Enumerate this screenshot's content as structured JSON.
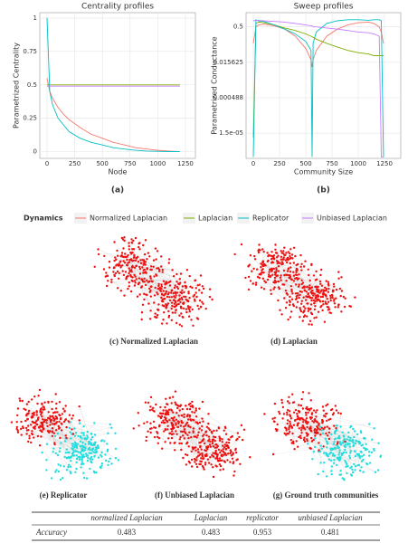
{
  "chart_data": [
    {
      "type": "line",
      "title": "Centrality profiles",
      "x_label": "Node",
      "y_label": "Parametrized Centrality",
      "panel_label": "(a)",
      "legend_title": "Dynamics",
      "grid": true,
      "x": [
        0,
        25,
        50,
        100,
        150,
        200,
        300,
        400,
        500,
        600,
        700,
        800,
        900,
        1000,
        1100,
        1200
      ],
      "xlim": [
        -65,
        1340
      ],
      "xticks": [
        0,
        250,
        500,
        750,
        1000,
        1250
      ],
      "ylim": [
        -0.05,
        1.04
      ],
      "yticks": [
        0,
        0.25,
        0.5,
        0.75,
        1
      ],
      "series": [
        {
          "name": "Normalized Laplacian",
          "color": "#f8766d",
          "values": [
            0.55,
            0.45,
            0.4,
            0.33,
            0.28,
            0.24,
            0.18,
            0.13,
            0.1,
            0.07,
            0.05,
            0.03,
            0.02,
            0.01,
            0.005,
            0
          ]
        },
        {
          "name": "Laplacian",
          "color": "#7cae00",
          "values": [
            0.5,
            0.5,
            0.5,
            0.5,
            0.5,
            0.5,
            0.5,
            0.5,
            0.5,
            0.5,
            0.5,
            0.5,
            0.5,
            0.5,
            0.5,
            0.5
          ]
        },
        {
          "name": "Replicator",
          "color": "#00bfc4",
          "values": [
            1,
            0.45,
            0.35,
            0.25,
            0.2,
            0.15,
            0.1,
            0.07,
            0.05,
            0.03,
            0.02,
            0.01,
            0.005,
            0.003,
            0.001,
            0
          ]
        },
        {
          "name": "Unbiased Laplacian",
          "color": "#c77cff",
          "values": [
            0.49,
            0.49,
            0.49,
            0.49,
            0.49,
            0.49,
            0.49,
            0.49,
            0.49,
            0.49,
            0.49,
            0.49,
            0.49,
            0.49,
            0.49,
            0.49
          ]
        }
      ]
    },
    {
      "type": "line",
      "title": "Sweep profiles",
      "x_label": "Community Size",
      "y_label": "Parametrized Conductance",
      "panel_label": "(b)",
      "grid": true,
      "log_y": true,
      "x": [
        0,
        25,
        50,
        100,
        200,
        300,
        400,
        500,
        550,
        560,
        570,
        600,
        700,
        800,
        900,
        1000,
        1100,
        1150,
        1200,
        1220,
        1240
      ],
      "xlim": [
        -69,
        1405
      ],
      "xticks": [
        0,
        250,
        500,
        750,
        1000,
        1250
      ],
      "ylim": [
        1.3e-06,
        2
      ],
      "yticks": [
        {
          "value": 1.52587890625e-05,
          "label": "1.5e-05"
        },
        {
          "value": 0.00048828125,
          "label": "0.000488"
        },
        0.015625,
        0.5
      ],
      "series": [
        {
          "color": "#f8766d",
          "values": [
            0.1,
            0.5,
            0.6,
            0.65,
            0.55,
            0.4,
            0.2,
            0.06,
            0.02,
            0.01,
            0.02,
            0.05,
            0.2,
            0.4,
            0.6,
            0.75,
            0.8,
            0.7,
            0.5,
            0.3,
            0.1
          ]
        },
        {
          "color": "#7cae00",
          "values": [
            1e-05,
            0.7,
            0.8,
            0.75,
            0.6,
            0.45,
            0.35,
            0.25,
            0.2,
            0.19,
            0.18,
            0.15,
            0.1,
            0.07,
            0.05,
            0.04,
            0.035,
            0.03,
            0.03,
            0.03,
            0.03
          ]
        },
        {
          "color": "#00bfc4",
          "values": [
            1.5e-06,
            1,
            0.9,
            0.85,
            0.6,
            0.4,
            0.25,
            0.12,
            0.05,
            1.5e-06,
            0.1,
            0.3,
            0.7,
            0.9,
            1,
            1,
            0.95,
            1,
            1,
            0.9,
            1.5e-06
          ]
        },
        {
          "color": "#c77cff",
          "values": [
            0.9,
            0.95,
            0.95,
            0.9,
            0.85,
            0.8,
            0.7,
            0.6,
            0.55,
            0.55,
            0.5,
            0.5,
            0.45,
            0.4,
            0.35,
            0.3,
            0.28,
            0.25,
            0.2,
            1.5e-06,
            1.5e-06
          ]
        }
      ]
    }
  ],
  "networks": [
    {
      "caption": "(c) Normalized Laplacian"
    },
    {
      "caption": "(d) Laplacian"
    },
    {
      "caption": "(e) Replicator"
    },
    {
      "caption": "(f) Unbiased Laplacian"
    },
    {
      "caption": "(g) Ground truth communities"
    }
  ],
  "table": {
    "columns": [
      "normalized Laplacian",
      "Laplacian",
      "replicator",
      "unbiased Laplacian"
    ],
    "row_label": "Accuracy",
    "values": [
      0.483,
      0.483,
      0.953,
      0.481
    ]
  }
}
